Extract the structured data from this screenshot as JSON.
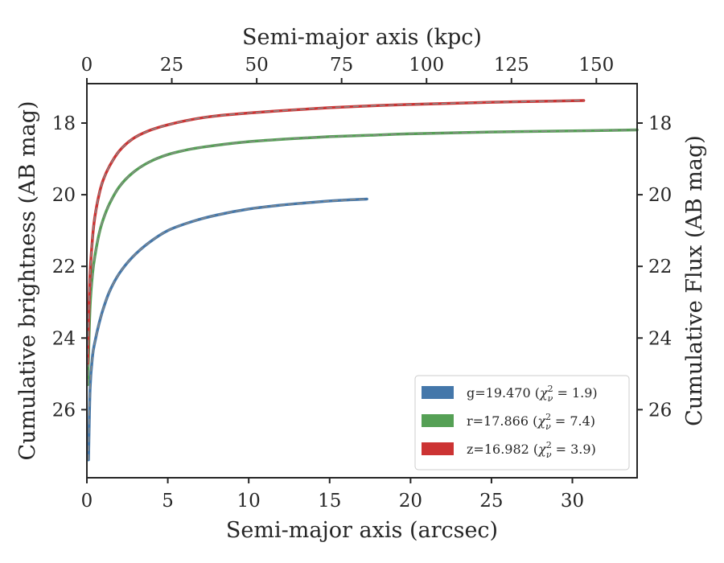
{
  "chart_data": {
    "type": "line",
    "title": "",
    "xlabel": "Semi-major axis (arcsec)",
    "ylabel": "Cumulative brightness (AB mag)",
    "x2label": "Semi-major axis (kpc)",
    "y2label": "Cumulative Flux (AB mag)",
    "xlim": [
      0,
      34
    ],
    "ylim": [
      27.9,
      16.9
    ],
    "x2lim": [
      0,
      162
    ],
    "y_inverted": true,
    "x_ticks": [
      "0",
      "5",
      "10",
      "15",
      "20",
      "25",
      "30"
    ],
    "y_ticks": [
      "18",
      "20",
      "22",
      "24",
      "26"
    ],
    "x2_ticks": [
      "0",
      "25",
      "50",
      "75",
      "100",
      "125",
      "150"
    ],
    "y2_ticks": [
      "18",
      "20",
      "22",
      "24",
      "26"
    ],
    "grid": false,
    "legend_position": "lower-right",
    "series": [
      {
        "name": "g=19.470 (χ²ᵥ = 1.9)",
        "legend_parts": {
          "text": "g=19.470 (",
          "chi": "χ",
          "sup": "2",
          "sub": "ν",
          "rest": " = 1.9)"
        },
        "color": "#4477aa",
        "x": [
          0.1,
          0.2,
          0.35,
          0.5,
          0.75,
          1.0,
          1.4,
          2.0,
          2.8,
          3.8,
          5.0,
          6.5,
          8.0,
          10.0,
          12.0,
          14.0,
          15.5,
          17.3
        ],
        "y": [
          27.4,
          25.4,
          24.5,
          24.1,
          23.6,
          23.2,
          22.7,
          22.2,
          21.75,
          21.35,
          21.0,
          20.75,
          20.57,
          20.4,
          20.29,
          20.21,
          20.16,
          20.12
        ]
      },
      {
        "name": "r=17.866 (χ²ᵥ = 7.4)",
        "legend_parts": {
          "text": "r=17.866 (",
          "chi": "χ",
          "sup": "2",
          "sub": "ν",
          "rest": " = 7.4)"
        },
        "color": "#55a055",
        "x": [
          0.05,
          0.1,
          0.2,
          0.35,
          0.5,
          0.75,
          1.0,
          1.4,
          2.0,
          2.8,
          3.8,
          5.0,
          6.5,
          8.0,
          10.0,
          12.5,
          15.0,
          17.5,
          20.0,
          25.0,
          30.0,
          34.0
        ],
        "y": [
          25.3,
          24.5,
          23.1,
          22.2,
          21.7,
          21.1,
          20.7,
          20.25,
          19.78,
          19.4,
          19.1,
          18.88,
          18.72,
          18.62,
          18.52,
          18.44,
          18.38,
          18.34,
          18.3,
          18.25,
          18.22,
          18.19
        ]
      },
      {
        "name": "z=16.982 (χ²ᵥ = 3.9)",
        "legend_parts": {
          "text": "z=16.982 (",
          "chi": "χ",
          "sup": "2",
          "sub": "ν",
          "rest": " = 3.9)"
        },
        "color": "#cc3333",
        "x": [
          0.05,
          0.1,
          0.2,
          0.35,
          0.5,
          0.75,
          1.0,
          1.4,
          2.0,
          2.8,
          3.8,
          5.0,
          6.5,
          8.0,
          10.0,
          12.5,
          15.0,
          17.5,
          20.0,
          25.0,
          30.7
        ],
        "y": [
          24.7,
          23.6,
          22.2,
          21.2,
          20.6,
          20.0,
          19.6,
          19.2,
          18.78,
          18.45,
          18.22,
          18.05,
          17.9,
          17.8,
          17.72,
          17.64,
          17.57,
          17.52,
          17.48,
          17.42,
          17.37
        ]
      }
    ],
    "model_line_style": "dashed",
    "model_line_color": "#888888"
  }
}
